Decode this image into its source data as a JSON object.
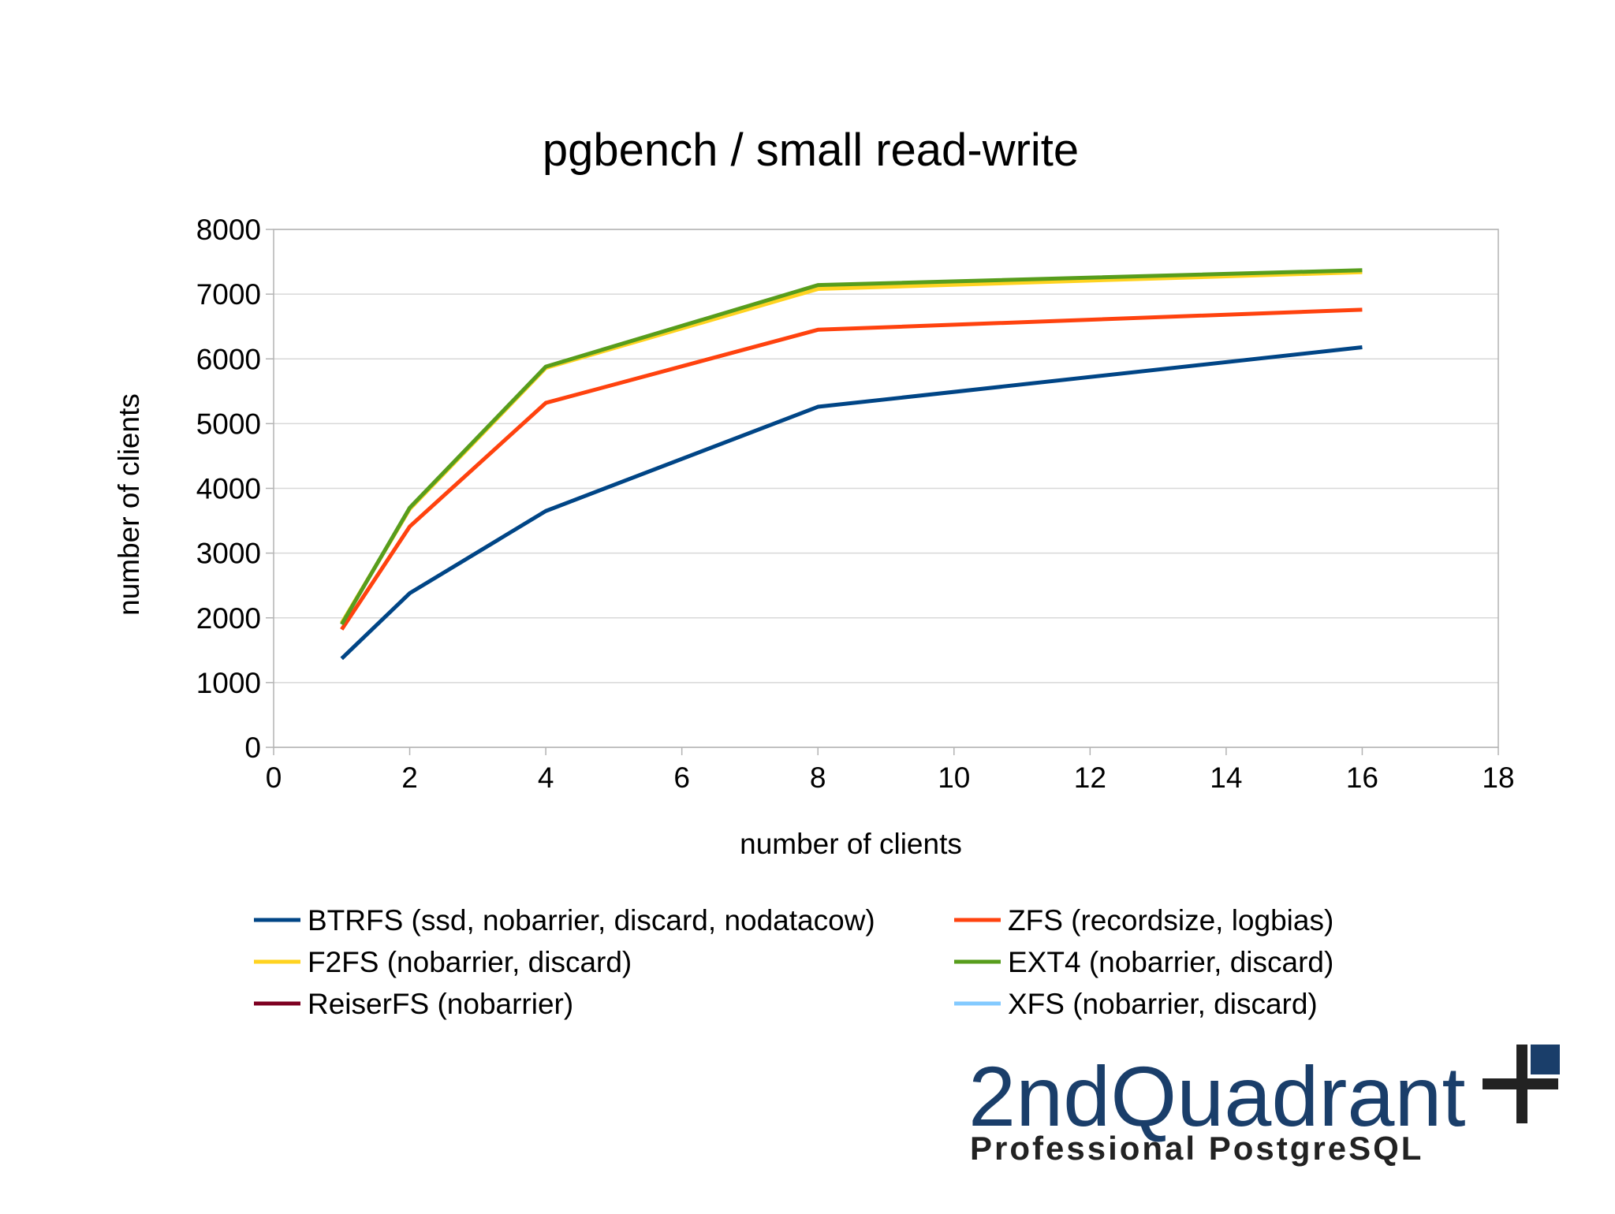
{
  "chart_data": {
    "type": "line",
    "title": "pgbench / small read-write",
    "xlabel": "number of clients",
    "ylabel": "number of clients",
    "x": [
      1,
      2,
      4,
      8,
      16
    ],
    "series": [
      {
        "name": "BTRFS (ssd, nobarrier, discard, nodatacow)",
        "color": "#004586",
        "values": [
          1370,
          2380,
          3650,
          5260,
          6180
        ]
      },
      {
        "name": "ZFS (recordsize, logbias)",
        "color": "#ff420e",
        "values": [
          1820,
          3410,
          5320,
          6450,
          6760
        ]
      },
      {
        "name": "F2FS (nobarrier, discard)",
        "color": "#ffd320",
        "values": [
          1920,
          3680,
          5860,
          7080,
          7340
        ]
      },
      {
        "name": "EXT4 (nobarrier, discard)",
        "color": "#579d1c",
        "values": [
          1900,
          3700,
          5880,
          7140,
          7370
        ]
      },
      {
        "name": "ReiserFS (nobarrier)",
        "color": "#7e0021",
        "values": [
          null,
          null,
          null,
          null,
          null
        ]
      },
      {
        "name": "XFS (nobarrier, discard)",
        "color": "#83caff",
        "values": [
          null,
          null,
          null,
          null,
          null
        ]
      }
    ],
    "xlim": [
      0,
      18
    ],
    "xticks": [
      0,
      2,
      4,
      6,
      8,
      10,
      12,
      14,
      16,
      18
    ],
    "ylim": [
      0,
      8000
    ],
    "yticks": [
      0,
      1000,
      2000,
      3000,
      4000,
      5000,
      6000,
      7000,
      8000
    ],
    "grid": true,
    "legend": "bottom"
  },
  "logo": {
    "name": "2ndQuadrant",
    "tagline": "Professional PostgreSQL"
  }
}
